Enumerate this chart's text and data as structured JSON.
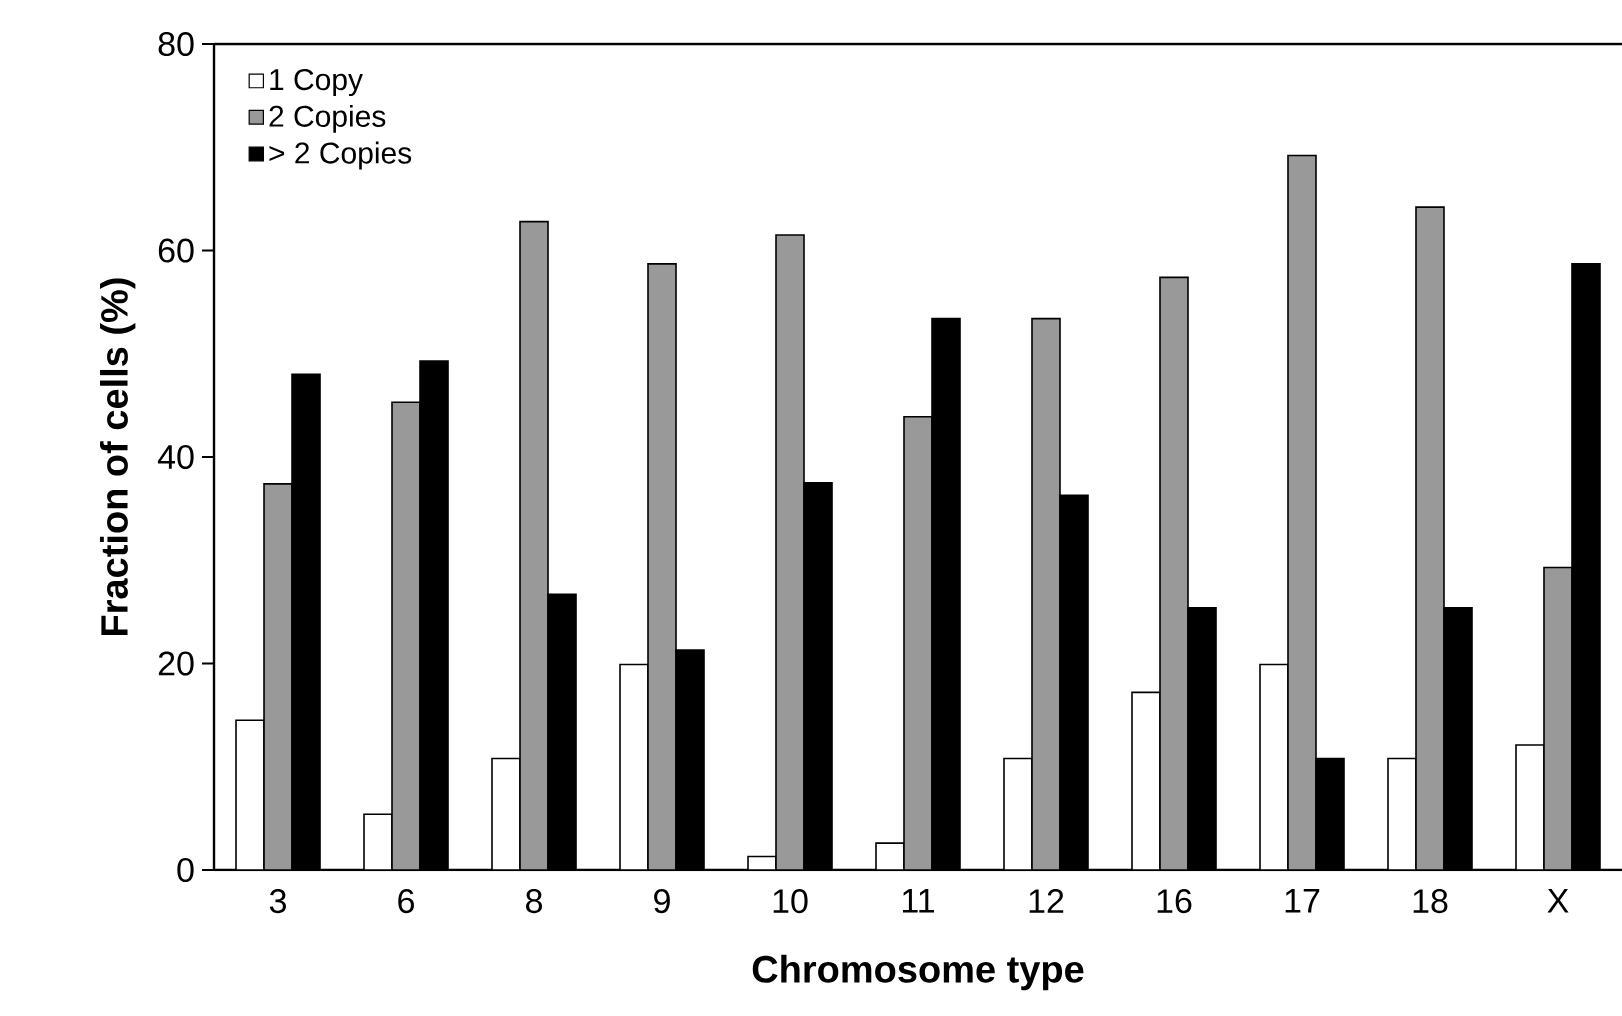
{
  "chart_data": {
    "type": "bar",
    "xlabel": "Chromosome type",
    "ylabel": "Fraction of cells (%)",
    "categories": [
      "3",
      "6",
      "8",
      "9",
      "10",
      "11",
      "12",
      "16",
      "17",
      "18",
      "X"
    ],
    "series": [
      {
        "name": "1 Copy",
        "color": "#ffffff",
        "values": [
          14.5,
          5.4,
          10.8,
          19.9,
          1.3,
          2.6,
          10.8,
          17.2,
          19.9,
          10.8,
          12.1
        ]
      },
      {
        "name": "2 Copies",
        "color": "#999999",
        "values": [
          37.4,
          45.3,
          62.8,
          58.7,
          61.5,
          43.9,
          53.4,
          57.4,
          69.2,
          64.2,
          29.3
        ]
      },
      {
        "name": "> 2 Copies",
        "color": "#000000",
        "values": [
          48.0,
          49.3,
          26.7,
          21.3,
          37.5,
          53.4,
          36.3,
          25.4,
          10.8,
          25.4,
          58.7
        ]
      }
    ],
    "ylim": [
      0,
      80
    ],
    "yticks": [
      0,
      20,
      40,
      60,
      80
    ],
    "legend": "top left"
  }
}
